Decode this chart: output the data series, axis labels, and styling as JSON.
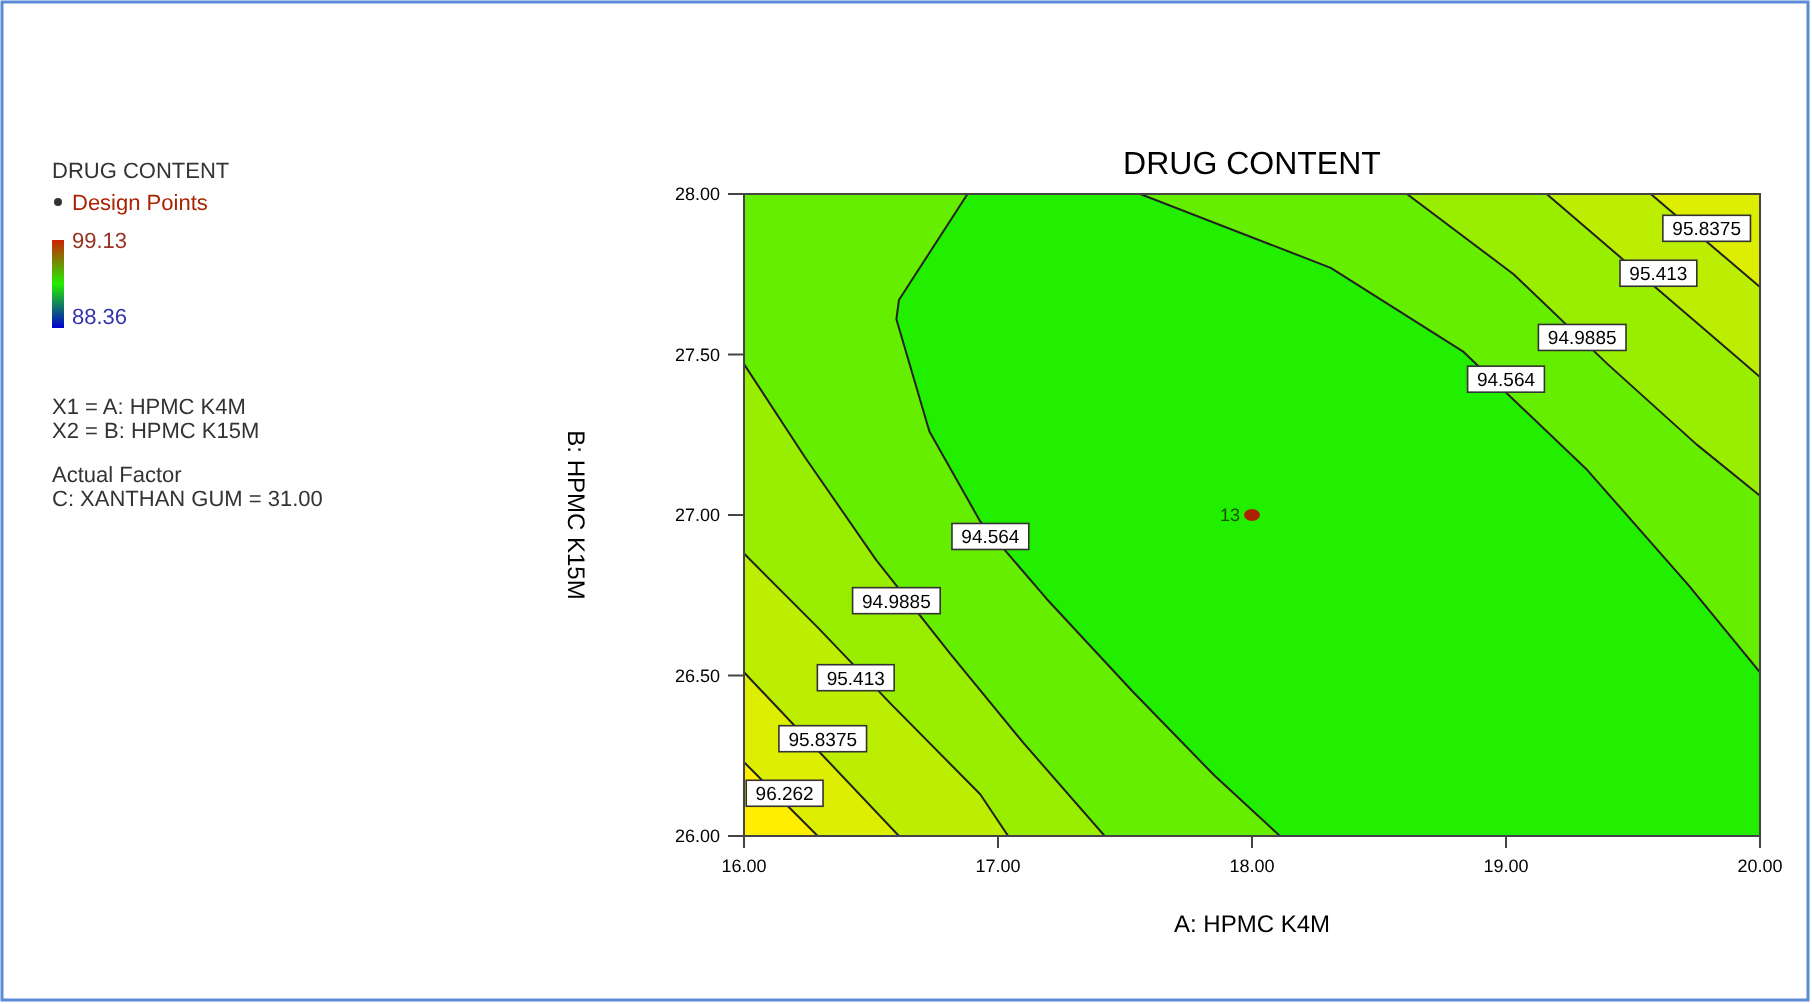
{
  "chart_data": {
    "type": "area",
    "title": "DRUG CONTENT",
    "xlabel": "A: HPMC K4M",
    "ylabel": "B: HPMC K15M",
    "legend_title": "DRUG CONTENT",
    "legend": "left",
    "xlim": [
      16,
      20
    ],
    "ylim": [
      26,
      28
    ],
    "xticks": [
      {
        "value": 16,
        "label": "16.00"
      },
      {
        "value": 17,
        "label": "17.00"
      },
      {
        "value": 18,
        "label": "18.00"
      },
      {
        "value": 19,
        "label": "19.00"
      },
      {
        "value": 20,
        "label": "20.00"
      }
    ],
    "yticks": [
      {
        "value": 26,
        "label": "26.00"
      },
      {
        "value": 26.5,
        "label": "26.50"
      },
      {
        "value": 27,
        "label": "27.00"
      },
      {
        "value": 27.5,
        "label": "27.50"
      },
      {
        "value": 28,
        "label": "28.00"
      }
    ],
    "clim": [
      88.36,
      99.13
    ],
    "cticks": [
      88.36,
      99.13
    ],
    "series": [
      {
        "color": "#66ee00",
        "x": [
          16.88,
          16.61,
          16.6,
          16.73,
          16.93,
          17.19,
          17.53,
          17.85,
          18.11,
          16,
          16
        ],
        "values": [
          28,
          27.67,
          27.61,
          27.26,
          26.98,
          26.74,
          26.45,
          26.19,
          26,
          26,
          28
        ]
      },
      {
        "color": "#99ee00",
        "x": [
          16,
          16.24,
          16.52,
          16.81,
          17.1,
          17.42,
          16
        ],
        "values": [
          27.47,
          27.18,
          26.86,
          26.57,
          26.29,
          26,
          26
        ]
      },
      {
        "color": "#bbee00",
        "x": [
          16,
          16.29,
          16.58,
          16.93,
          17.04,
          16
        ],
        "values": [
          26.88,
          26.65,
          26.41,
          26.13,
          26,
          26
        ]
      },
      {
        "color": "#ddee00",
        "x": [
          16,
          16.61,
          16
        ],
        "values": [
          26.51,
          26,
          26
        ]
      },
      {
        "color": "#ffee00",
        "x": [
          16,
          16.29,
          16
        ],
        "values": [
          26.23,
          26,
          26
        ]
      },
      {
        "color": "#66ee00",
        "x": [
          17.56,
          18.31,
          18.83,
          19.32,
          19.72,
          20,
          20
        ],
        "values": [
          28,
          27.77,
          27.51,
          27.14,
          26.78,
          26.51,
          28
        ]
      },
      {
        "color": "#99ee00",
        "x": [
          18.61,
          19.03,
          19.4,
          19.75,
          20,
          20
        ],
        "values": [
          28,
          27.75,
          27.47,
          27.22,
          27.06,
          28
        ]
      },
      {
        "color": "#bbee00",
        "x": [
          19.16,
          20,
          20
        ],
        "values": [
          28,
          27.43,
          28
        ]
      },
      {
        "color": "#ddee00",
        "x": [
          19.57,
          20,
          20
        ],
        "values": [
          28,
          27.71,
          28
        ]
      },
      {
        "type": "scatter",
        "name": "Design Points",
        "color": "#aa2200",
        "marker": "circle",
        "x": [
          18
        ],
        "values": [
          27
        ]
      }
    ],
    "annotations": [
      {
        "text": "94.564",
        "x": 16.97,
        "y": 26.93
      },
      {
        "text": "94.9885",
        "x": 16.6,
        "y": 26.73
      },
      {
        "text": "95.413",
        "x": 16.44,
        "y": 26.49
      },
      {
        "text": "95.8375",
        "x": 16.31,
        "y": 26.3
      },
      {
        "text": "96.262",
        "x": 16.16,
        "y": 26.13
      },
      {
        "text": "94.564",
        "x": 19.0,
        "y": 27.42
      },
      {
        "text": "94.9885",
        "x": 19.3,
        "y": 27.55
      },
      {
        "text": "95.413",
        "x": 19.6,
        "y": 27.75
      },
      {
        "text": "95.8375",
        "x": 19.79,
        "y": 27.89
      },
      {
        "text": "13",
        "x": 18,
        "y": 27
      },
      "X1 = A: HPMC K4M",
      "X2 = B: HPMC K15M",
      "Actual Factor",
      "C: XANTHAN GUM = 31.00"
    ]
  }
}
